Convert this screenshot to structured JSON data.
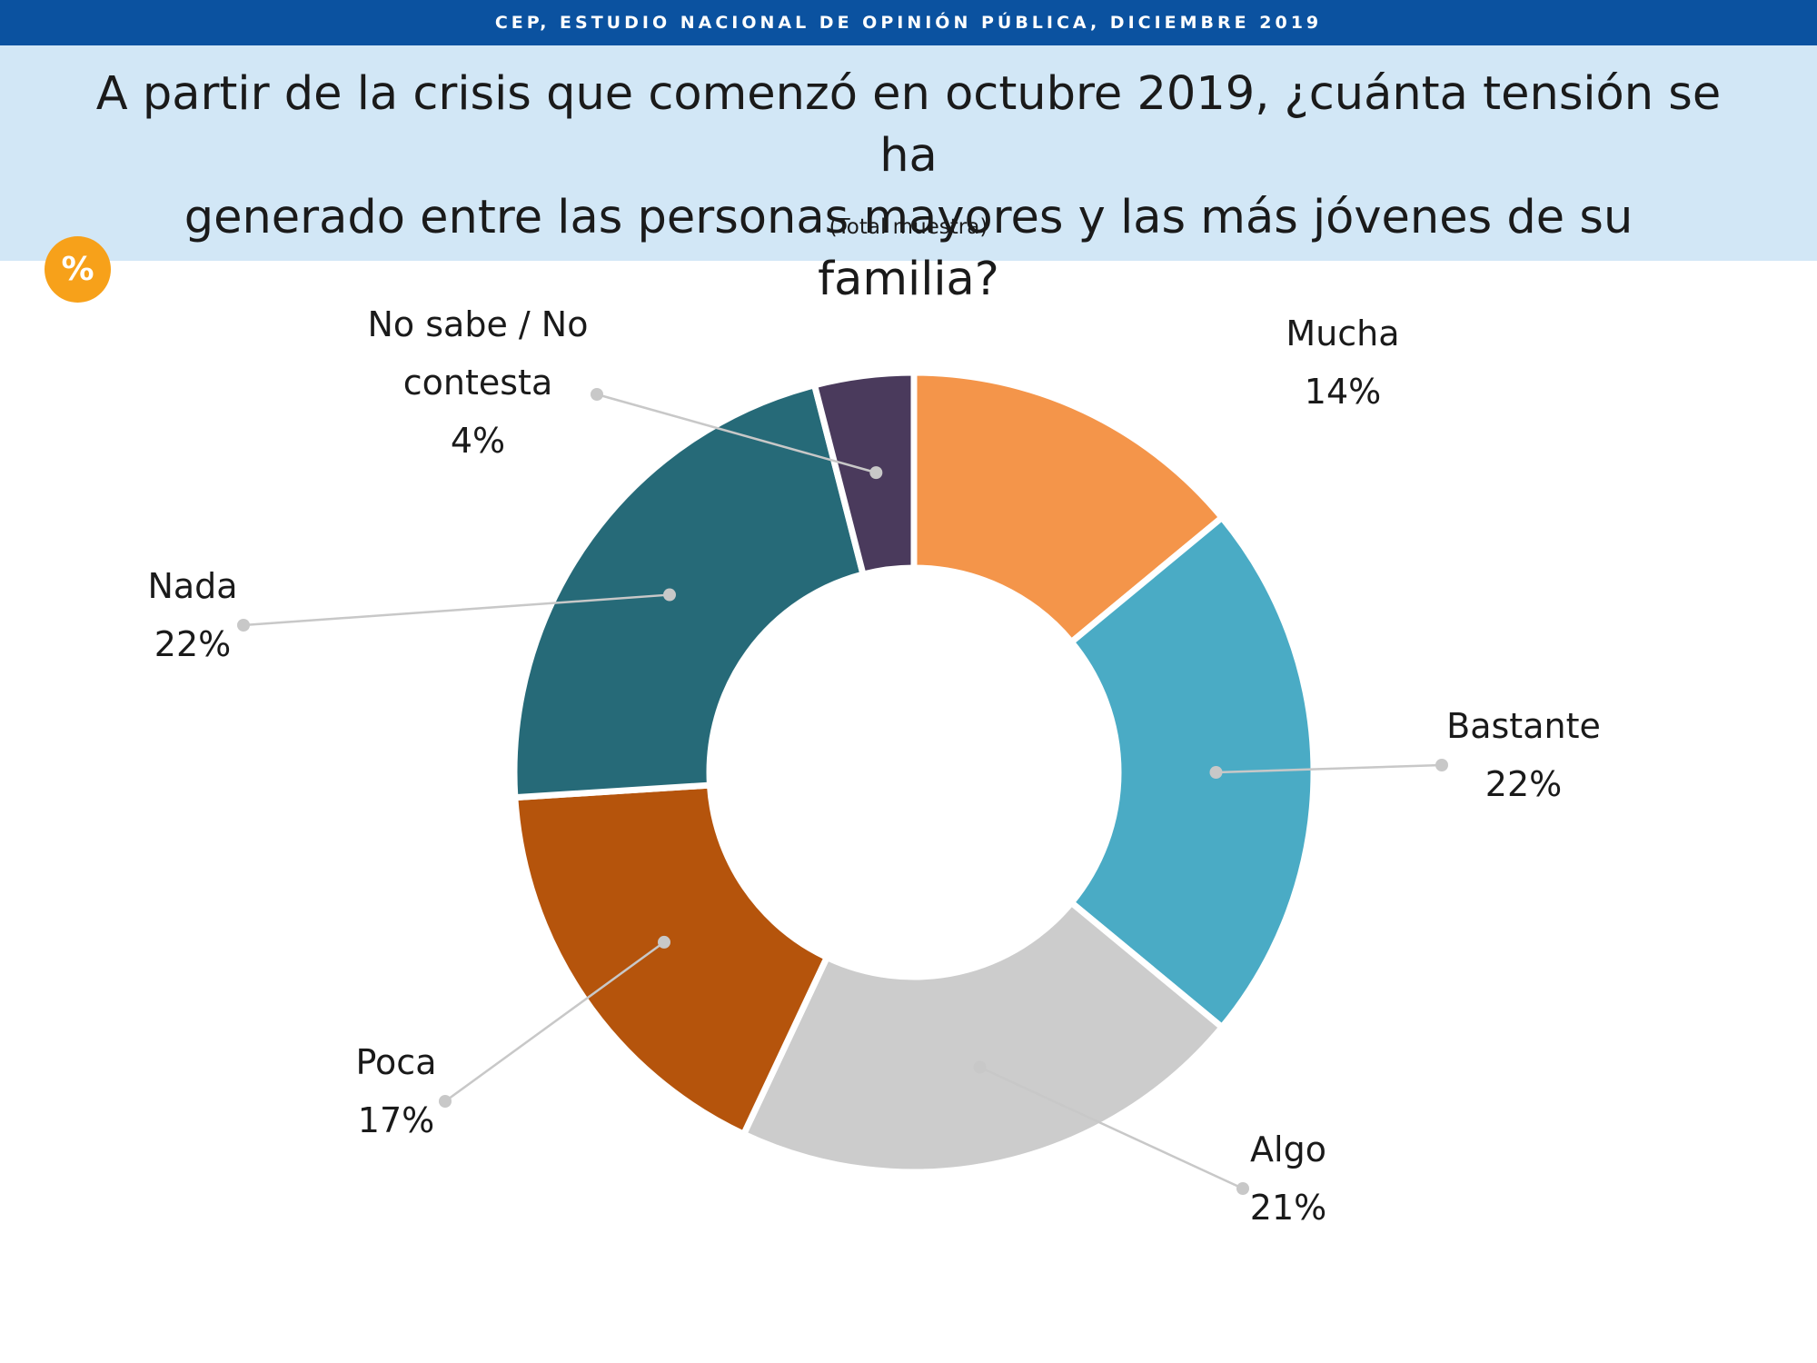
{
  "header": {
    "source": "CEP, ESTUDIO NACIONAL DE OPINIÓN PÚBLICA, DICIEMBRE 2019",
    "question_line1": "A partir de la crisis que comenzó en octubre 2019, ¿cuánta tensión se ha",
    "question_line2": "generado entre las personas mayores y las más jóvenes de su familia?",
    "subtitle": "(Total muestra)",
    "badge": "%"
  },
  "colors": {
    "top_bar": "#0b52a0",
    "header_panel": "#d2e7f6",
    "badge": "#f7a11a"
  },
  "chart_data": {
    "type": "pie",
    "variant": "donut",
    "title": "A partir de la crisis que comenzó en octubre 2019, ¿cuánta tensión se ha generado entre las personas mayores y las más jóvenes de su familia?",
    "subtitle": "(Total muestra)",
    "legend": "none",
    "slices": [
      {
        "lines": [
          "Mucha"
        ],
        "value": 14,
        "value_label": "14%",
        "color": "#f4954a"
      },
      {
        "lines": [
          "Bastante"
        ],
        "value": 22,
        "value_label": "22%",
        "color": "#4aabc5"
      },
      {
        "lines": [
          "Algo"
        ],
        "value": 21,
        "value_label": "21%",
        "color": "#cccccc"
      },
      {
        "lines": [
          "Poca"
        ],
        "value": 17,
        "value_label": "17%",
        "color": "#b5540c"
      },
      {
        "lines": [
          "Nada"
        ],
        "value": 22,
        "value_label": "22%",
        "color": "#266a78"
      },
      {
        "lines": [
          "No sabe / No",
          "contesta"
        ],
        "value": 4,
        "value_label": "4%",
        "color": "#4a3a5c"
      }
    ]
  }
}
